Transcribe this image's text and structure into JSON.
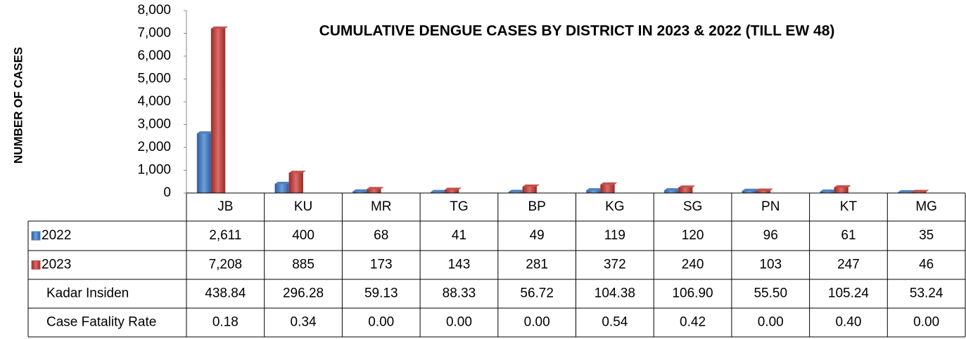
{
  "chart_data": {
    "type": "bar",
    "title": "CUMULATIVE DENGUE CASES BY DISTRICT IN 2023 & 2022 (TILL EW 48)",
    "y_label": "NUMBER OF CASES",
    "categories": [
      "JB",
      "KU",
      "MR",
      "TG",
      "BP",
      "KG",
      "SG",
      "PN",
      "KT",
      "MG"
    ],
    "series": [
      {
        "name": "2022",
        "color": "#4f81bd",
        "values": [
          2611,
          400,
          68,
          41,
          49,
          119,
          120,
          96,
          61,
          35
        ],
        "value_labels": [
          "2,611",
          "400",
          "68",
          "41",
          "49",
          "119",
          "120",
          "96",
          "61",
          "35"
        ]
      },
      {
        "name": "2023",
        "color": "#c0504d",
        "values": [
          7208,
          885,
          173,
          143,
          281,
          372,
          240,
          103,
          247,
          46
        ],
        "value_labels": [
          "7,208",
          "885",
          "173",
          "143",
          "281",
          "372",
          "240",
          "103",
          "247",
          "46"
        ]
      }
    ],
    "table_rows": [
      {
        "name": "Kadar Insiden",
        "values": [
          "438.84",
          "296.28",
          "59.13",
          "88.33",
          "56.72",
          "104.38",
          "106.90",
          "55.50",
          "105.24",
          "53.24"
        ]
      },
      {
        "name": "Case Fatality Rate",
        "values": [
          "0.18",
          "0.34",
          "0.00",
          "0.00",
          "0.00",
          "0.54",
          "0.42",
          "0.00",
          "0.40",
          "0.00"
        ]
      }
    ],
    "ylim": [
      0,
      8000
    ],
    "yticks": [
      0,
      {
        "value": 1000,
        "label": "1,000"
      },
      {
        "value": 2000,
        "label": "2,000"
      },
      {
        "value": 3000,
        "label": "3,000"
      },
      {
        "value": 4000,
        "label": "4,000"
      },
      {
        "value": 5000,
        "label": "5,000"
      },
      {
        "value": 6000,
        "label": "6,000"
      },
      {
        "value": 7000,
        "label": "7,000"
      },
      {
        "value": 8000,
        "label": "8,000"
      }
    ]
  }
}
